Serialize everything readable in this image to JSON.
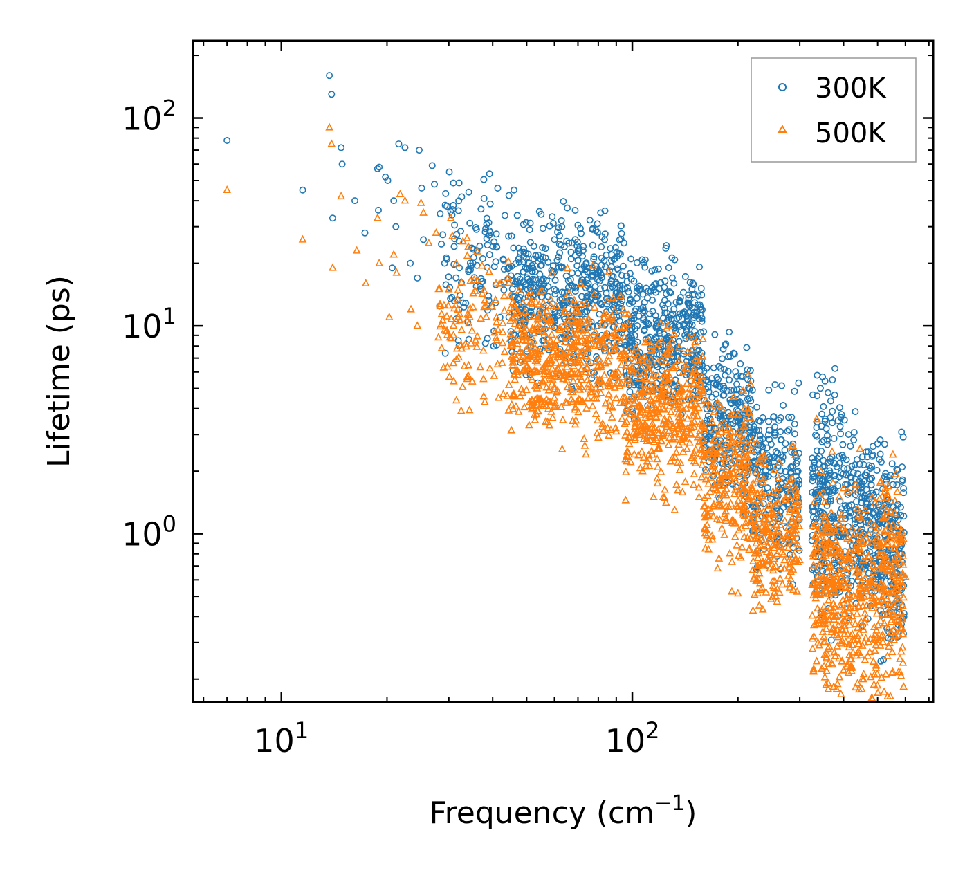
{
  "chart_data": {
    "type": "scatter",
    "title": "",
    "xlabel": "Frequency (cm",
    "xlabel_sup": "−1",
    "xlabel_close": ")",
    "ylabel": "Lifetime (ps)",
    "xscale": "log",
    "yscale": "log",
    "xlim": [
      5.6,
      720
    ],
    "ylim": [
      0.155,
      235
    ],
    "x_ticks": [
      {
        "value": 10,
        "base": "10",
        "exp": "1"
      },
      {
        "value": 100,
        "base": "10",
        "exp": "2"
      }
    ],
    "y_ticks": [
      {
        "value": 1,
        "base": "10",
        "exp": "0"
      },
      {
        "value": 10,
        "base": "10",
        "exp": "1"
      },
      {
        "value": 100,
        "base": "10",
        "exp": "2"
      }
    ],
    "legend_position": "top-right",
    "series": [
      {
        "name": "300K",
        "marker": "circle",
        "color": "#1f77b4",
        "outliers": [
          [
            7.0,
            78
          ],
          [
            11.5,
            45
          ],
          [
            13.7,
            160
          ],
          [
            13.9,
            130
          ],
          [
            14.0,
            33
          ],
          [
            14.8,
            72
          ],
          [
            14.9,
            60
          ],
          [
            16.2,
            40
          ],
          [
            17.3,
            28
          ],
          [
            18.8,
            57
          ],
          [
            18.9,
            36
          ],
          [
            19.0,
            58
          ],
          [
            19.8,
            52
          ],
          [
            20.1,
            50
          ],
          [
            20.7,
            19
          ],
          [
            20.9,
            40
          ],
          [
            21.2,
            30
          ],
          [
            21.6,
            75
          ],
          [
            22.5,
            72
          ],
          [
            23.3,
            20
          ],
          [
            24.4,
            17
          ],
          [
            24.7,
            70
          ],
          [
            25.1,
            46
          ],
          [
            25.4,
            26
          ],
          [
            26.9,
            59
          ],
          [
            27.3,
            48
          ],
          [
            30.1,
            55
          ],
          [
            30.9,
            38
          ],
          [
            34.2,
            44
          ],
          [
            37.8,
            41
          ],
          [
            39.2,
            22
          ],
          [
            46.0,
            45
          ],
          [
            47.0,
            34
          ],
          [
            51.0,
            29
          ],
          [
            60.0,
            26
          ],
          [
            63.0,
            30
          ],
          [
            64.0,
            24
          ],
          [
            67.0,
            21
          ],
          [
            70.0,
            23
          ],
          [
            75.0,
            19
          ],
          [
            80.0,
            18
          ]
        ],
        "bands": [
          {
            "x0": 28,
            "x1": 45,
            "center": 20,
            "spread": 0.55,
            "n": 120
          },
          {
            "x0": 45,
            "x1": 95,
            "center": 14,
            "spread": 0.5,
            "n": 500
          },
          {
            "x0": 95,
            "x1": 160,
            "center": 8.5,
            "spread": 0.5,
            "n": 400
          },
          {
            "x0": 160,
            "x1": 220,
            "center": 3.5,
            "spread": 0.55,
            "n": 250
          },
          {
            "x0": 220,
            "x1": 300,
            "center": 1.8,
            "spread": 0.55,
            "n": 230
          },
          {
            "x0": 325,
            "x1": 400,
            "center": 1.5,
            "spread": 0.75,
            "n": 230
          },
          {
            "x0": 400,
            "x1": 500,
            "center": 1.1,
            "spread": 0.6,
            "n": 200
          },
          {
            "x0": 500,
            "x1": 595,
            "center": 0.85,
            "spread": 0.65,
            "n": 180
          }
        ]
      },
      {
        "name": "500K",
        "marker": "triangle",
        "color": "#ff7f0e",
        "outliers": [
          [
            7.0,
            45
          ],
          [
            11.5,
            26
          ],
          [
            13.7,
            90
          ],
          [
            13.9,
            75
          ],
          [
            14.0,
            19
          ],
          [
            14.8,
            42
          ],
          [
            16.4,
            23
          ],
          [
            17.4,
            16
          ],
          [
            18.8,
            33
          ],
          [
            19.0,
            20
          ],
          [
            20.3,
            11
          ],
          [
            20.9,
            22
          ],
          [
            21.3,
            18
          ],
          [
            21.8,
            43
          ],
          [
            22.5,
            40
          ],
          [
            23.4,
            12
          ],
          [
            24.4,
            10
          ],
          [
            25.0,
            39
          ],
          [
            25.4,
            35
          ],
          [
            26.3,
            25
          ],
          [
            27.6,
            28
          ],
          [
            29.0,
            6.3
          ],
          [
            30.4,
            33
          ],
          [
            30.7,
            27
          ],
          [
            34.1,
            24
          ],
          [
            35.0,
            5.4
          ],
          [
            38.0,
            4.3
          ],
          [
            44.0,
            4.6
          ],
          [
            51.0,
            4.3
          ],
          [
            60.0,
            4.5
          ],
          [
            80.0,
            2.9
          ],
          [
            90.0,
            3.1
          ],
          [
            98.0,
            2.7
          ],
          [
            107.0,
            2.0
          ],
          [
            115.0,
            1.5
          ],
          [
            132.0,
            1.3
          ],
          [
            155.0,
            1.5
          ],
          [
            400.0,
            0.22
          ],
          [
            490.0,
            0.21
          ],
          [
            600.0,
            0.62
          ]
        ],
        "bands": [
          {
            "x0": 28,
            "x1": 45,
            "center": 10,
            "spread": 0.55,
            "n": 120
          },
          {
            "x0": 45,
            "x1": 95,
            "center": 6.8,
            "spread": 0.5,
            "n": 500
          },
          {
            "x0": 95,
            "x1": 160,
            "center": 4.0,
            "spread": 0.5,
            "n": 400
          },
          {
            "x0": 160,
            "x1": 220,
            "center": 1.8,
            "spread": 0.55,
            "n": 250
          },
          {
            "x0": 220,
            "x1": 300,
            "center": 1.0,
            "spread": 0.5,
            "n": 230
          },
          {
            "x0": 325,
            "x1": 400,
            "center": 0.55,
            "spread": 0.8,
            "n": 230
          },
          {
            "x0": 400,
            "x1": 500,
            "center": 0.5,
            "spread": 0.7,
            "n": 200
          },
          {
            "x0": 500,
            "x1": 595,
            "center": 0.6,
            "spread": 0.7,
            "n": 180
          }
        ]
      }
    ]
  }
}
